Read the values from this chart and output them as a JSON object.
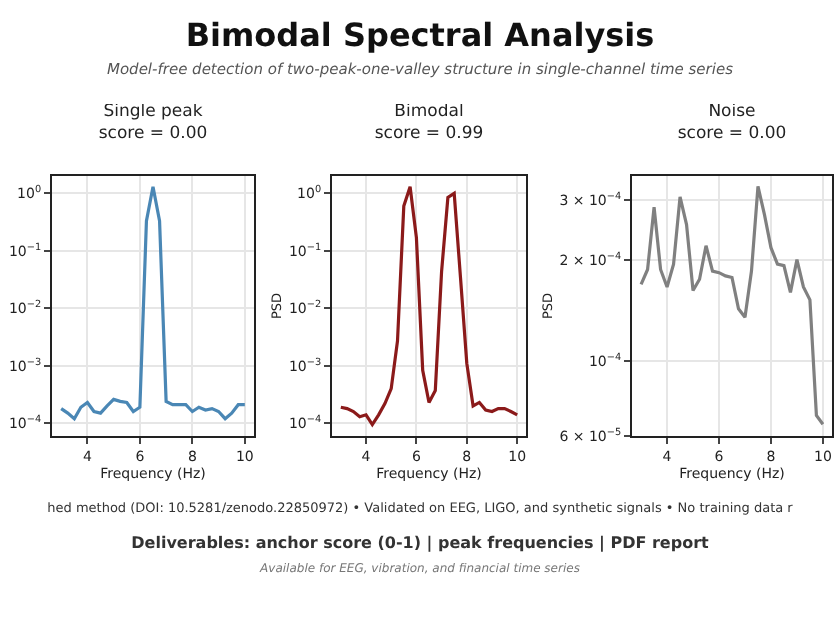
{
  "chart_data": [
    {
      "type": "line",
      "title": "Single peak\nscore = 0.00",
      "xlabel": "Frequency (Hz)",
      "x": [
        3,
        3.25,
        3.5,
        3.75,
        4,
        4.25,
        4.5,
        4.75,
        5,
        5.25,
        5.5,
        5.75,
        6,
        6.25,
        6.5,
        6.75,
        7,
        7.25,
        7.5,
        7.75,
        8,
        8.25,
        8.5,
        8.75,
        9,
        9.25,
        9.5,
        9.75,
        10
      ],
      "series": [
        {
          "color": "#4a87b5",
          "values": [
            0.00018,
            0.00015,
            0.00012,
            0.00019,
            0.00023,
            0.00016,
            0.00015,
            0.0002,
            0.00026,
            0.00024,
            0.00023,
            0.00016,
            0.00019,
            0.33,
            1.3,
            0.33,
            0.00024,
            0.00021,
            0.00021,
            0.00021,
            0.00016,
            0.00019,
            0.00017,
            0.00018,
            0.00016,
            0.00012,
            0.00015,
            0.00021,
            0.00021
          ]
        }
      ],
      "log": "y",
      "grid": true,
      "xlim": [
        2.65,
        10.35
      ],
      "xticks": [
        4,
        6,
        8,
        10
      ],
      "ylim": [
        6e-05,
        2
      ],
      "yticks": [
        {
          "value": 0.0001,
          "label": "10$^{−4}$"
        },
        {
          "value": 0.001,
          "label": "10$^{−3}$"
        },
        {
          "value": 0.01,
          "label": "10$^{−2}$"
        },
        {
          "value": 0.1,
          "label": "10$^{−1}$"
        },
        {
          "value": 1,
          "label": "10$^{0}$"
        }
      ]
    },
    {
      "type": "line",
      "title": "Bimodal\nscore = 0.99",
      "xlabel": "Frequency (Hz)",
      "ylabel": "PSD",
      "x": [
        3,
        3.25,
        3.5,
        3.75,
        4,
        4.25,
        4.5,
        4.75,
        5,
        5.25,
        5.5,
        5.75,
        6,
        6.25,
        6.5,
        6.75,
        7,
        7.25,
        7.5,
        7.75,
        8,
        8.25,
        8.5,
        8.75,
        9,
        9.25,
        9.5,
        9.75,
        10
      ],
      "series": [
        {
          "color": "#8b1a1a",
          "values": [
            0.00019,
            0.00018,
            0.00016,
            0.00013,
            0.00014,
            9.5e-05,
            0.00014,
            0.00022,
            0.0004,
            0.0027,
            0.6,
            1.3,
            0.17,
            0.00083,
            0.00023,
            0.00037,
            0.044,
            0.85,
            1.0,
            0.034,
            0.0011,
            0.0002,
            0.00023,
            0.00017,
            0.00016,
            0.00018,
            0.00018,
            0.00016,
            0.00014
          ]
        }
      ],
      "log": "y",
      "grid": true,
      "xlim": [
        2.65,
        10.35
      ],
      "xticks": [
        4,
        6,
        8,
        10
      ],
      "ylim": [
        6e-05,
        2
      ],
      "yticks": [
        {
          "value": 0.0001,
          "label": "10$^{−4}$"
        },
        {
          "value": 0.001,
          "label": "10$^{−3}$"
        },
        {
          "value": 0.01,
          "label": "10$^{−2}$"
        },
        {
          "value": 0.1,
          "label": "10$^{−1}$"
        },
        {
          "value": 1,
          "label": "10$^{0}$"
        }
      ]
    },
    {
      "type": "line",
      "title": "Noise\nscore = 0.00",
      "xlabel": "Frequency (Hz)",
      "ylabel": "PSD",
      "x": [
        3,
        3.25,
        3.5,
        3.75,
        4,
        4.25,
        4.5,
        4.75,
        5,
        5.25,
        5.5,
        5.75,
        6,
        6.25,
        6.5,
        6.75,
        7,
        7.25,
        7.5,
        7.75,
        8,
        8.25,
        8.5,
        8.75,
        9,
        9.25,
        9.5,
        9.75,
        10
      ],
      "series": [
        {
          "color": "#808080",
          "values": [
            0.000169,
            0.000187,
            0.000286,
            0.000187,
            0.000166,
            0.000194,
            0.000307,
            0.000254,
            0.000162,
            0.000175,
            0.00022,
            0.000185,
            0.000183,
            0.000179,
            0.000177,
            0.000143,
            0.000135,
            0.000185,
            0.00033,
            0.000272,
            0.000217,
            0.000194,
            0.000192,
            0.00016,
            0.0002,
            0.000166,
            0.000152,
            6.9e-05,
            6.5e-05
          ]
        }
      ],
      "log": "y",
      "grid": true,
      "xlim": [
        2.65,
        10.35
      ],
      "xticks": [
        4,
        6,
        8,
        10
      ],
      "ylim": [
        6e-05,
        0.000354
      ],
      "yticks": [
        {
          "value": 6e-05,
          "label": "6 × 10$^{−5}$"
        },
        {
          "value": 0.0001,
          "label": "10$^{−4}$"
        },
        {
          "value": 0.0002,
          "label": "2 × 10$^{−4}$"
        },
        {
          "value": 0.0003,
          "label": "3 × 10$^{−4}$"
        }
      ]
    },
    {
      "type": "other",
      "title": "Bimodal Spectral Analysis",
      "subtitle": "Model-free detection of two-peak-one-valley structure in single-channel time series",
      "annotations": [
        "hed method (DOI: 10.5281/zenodo.22850972)   • Validated on EEG, LIGO, and synthetic signals   • No training data r",
        "Deliverables: anchor score (0-1)  |  peak frequencies  |  PDF report",
        "Available for EEG, vibration, and financial time series"
      ]
    }
  ]
}
